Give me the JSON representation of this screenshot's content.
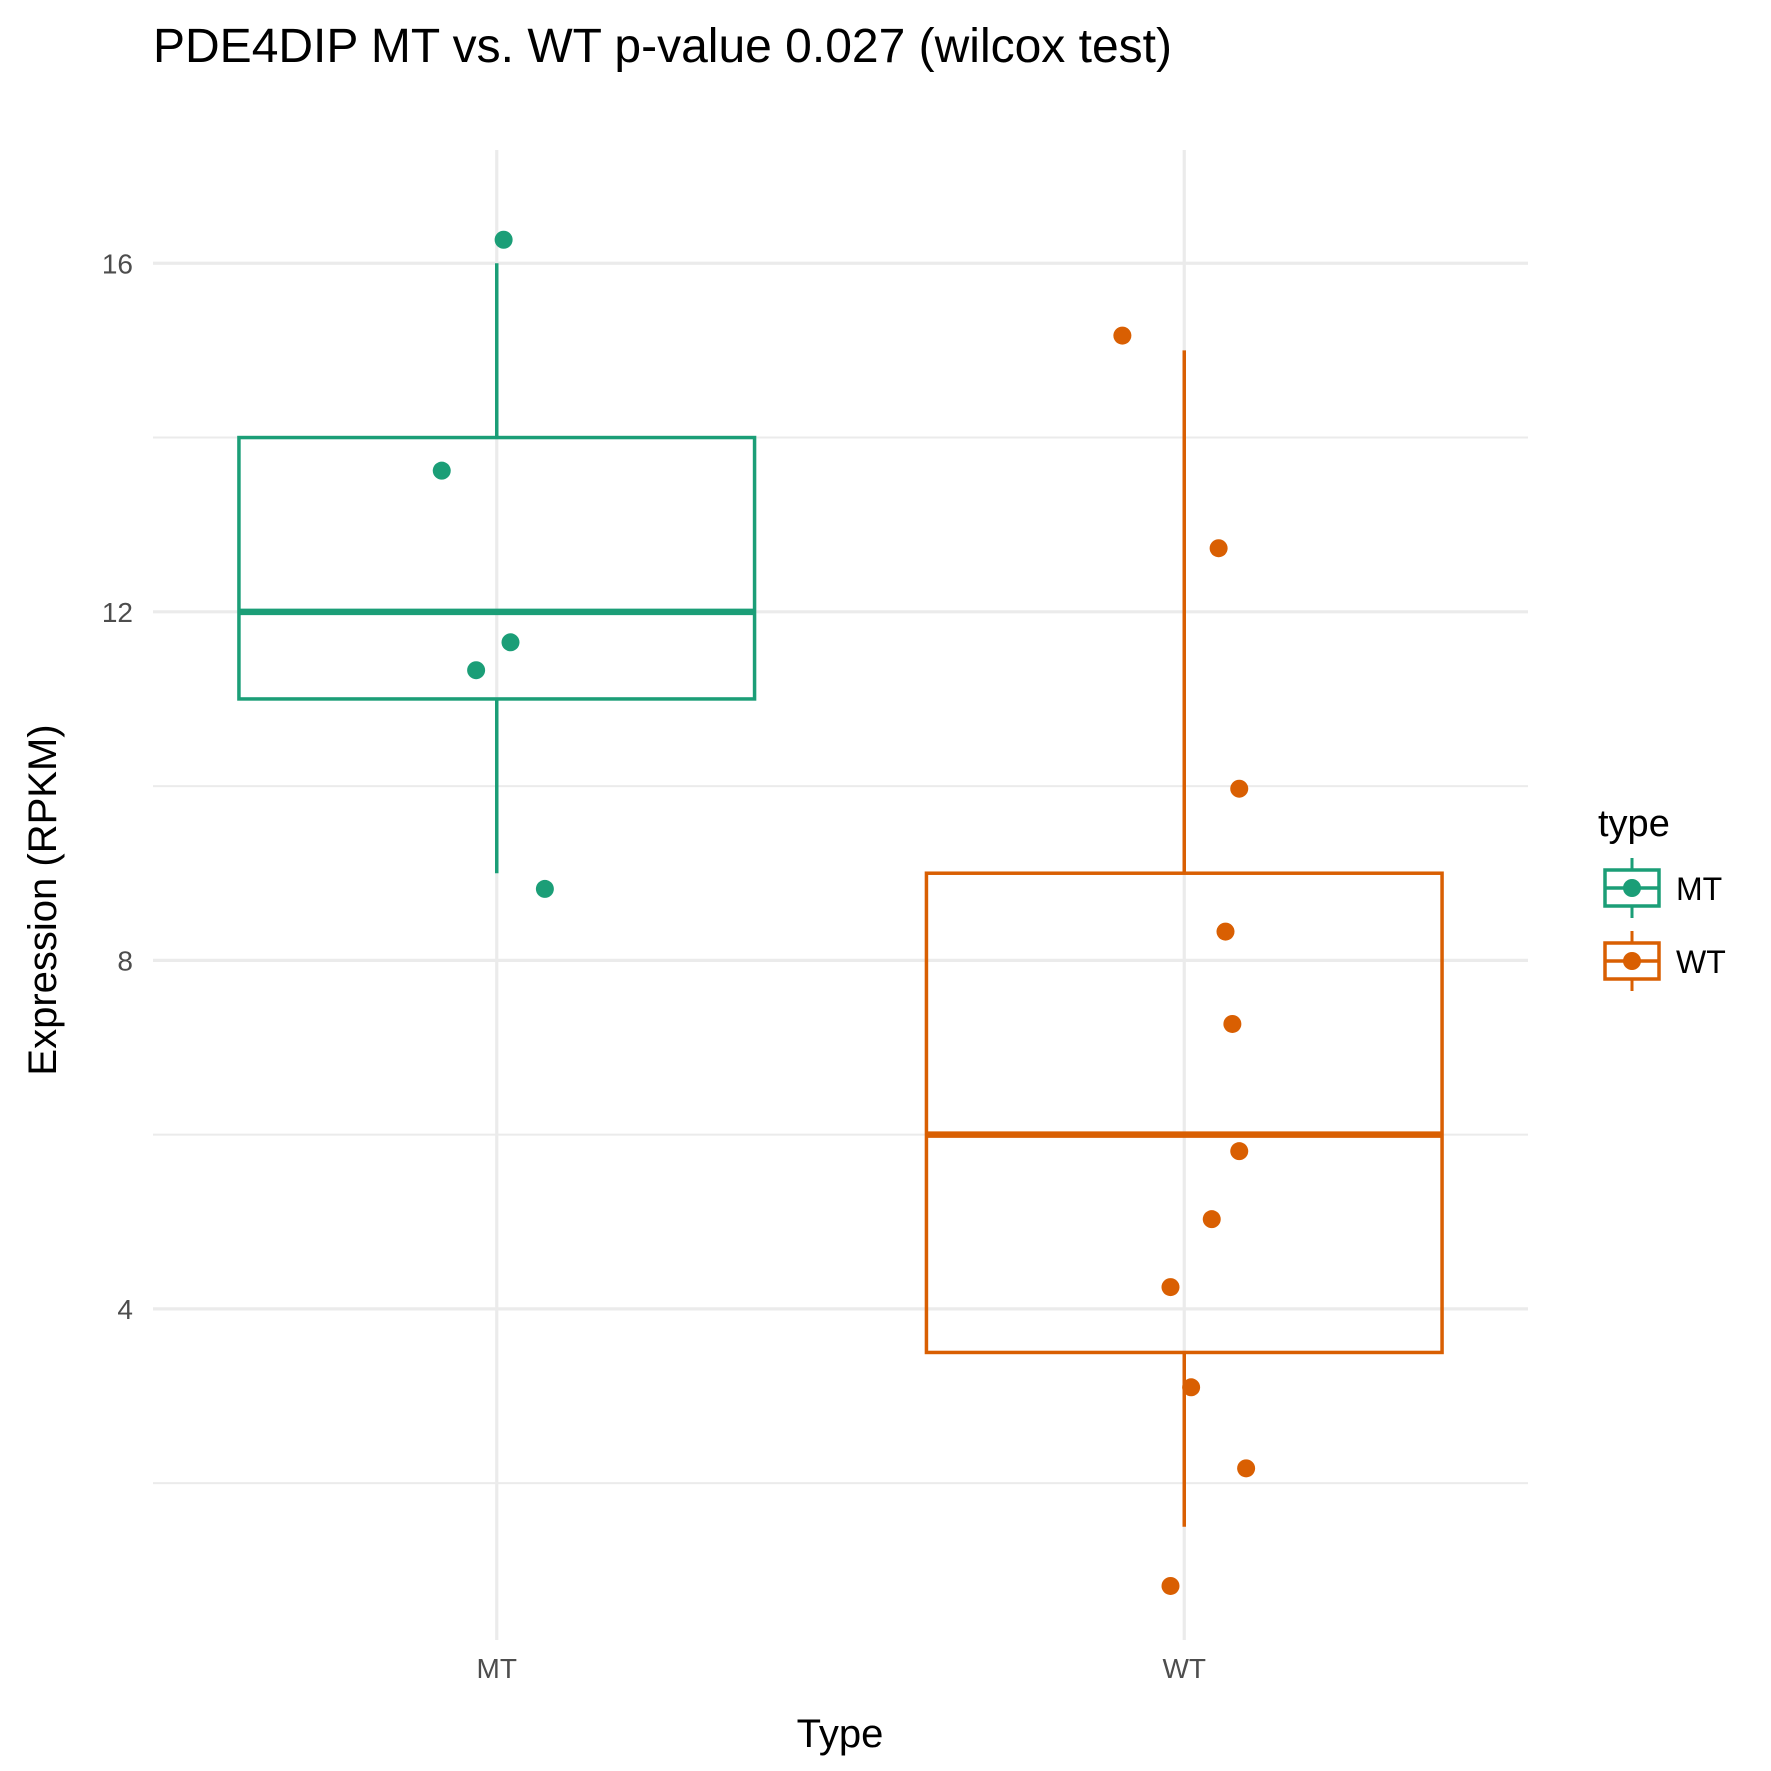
{
  "chart_data": {
    "type": "box",
    "title": "PDE4DIP MT vs. WT p-value 0.027 (wilcox test)",
    "xlabel": "Type",
    "ylabel": "Expression (RPKM)",
    "ylim": [
      0.2,
      17.3
    ],
    "y_ticks": [
      4,
      8,
      12,
      16
    ],
    "y_tick_labels": [
      "4",
      "8",
      "12",
      "16"
    ],
    "categories": [
      "MT",
      "WT"
    ],
    "grid": true,
    "legend": {
      "title": "type",
      "position": "right",
      "entries": [
        "MT",
        "WT"
      ]
    },
    "colors": {
      "MT": "#1b9e77",
      "WT": "#d95f02"
    },
    "series": [
      {
        "name": "MT",
        "box": {
          "whisker_low": 9.0,
          "q1": 11.0,
          "median": 12.0,
          "q3": 14.0,
          "whisker_high": 16.0
        },
        "points": [
          {
            "x_offset": 0.01,
            "y": 16.27
          },
          {
            "x_offset": -0.08,
            "y": 13.62
          },
          {
            "x_offset": 0.02,
            "y": 11.65
          },
          {
            "x_offset": -0.03,
            "y": 11.33
          },
          {
            "x_offset": 0.07,
            "y": 8.82
          }
        ]
      },
      {
        "name": "WT",
        "box": {
          "whisker_low": 1.5,
          "q1": 3.5,
          "median": 6.0,
          "q3": 9.0,
          "whisker_high": 15.0
        },
        "points": [
          {
            "x_offset": -0.09,
            "y": 15.17
          },
          {
            "x_offset": 0.05,
            "y": 12.73
          },
          {
            "x_offset": 0.08,
            "y": 9.97
          },
          {
            "x_offset": 0.06,
            "y": 8.33
          },
          {
            "x_offset": 0.07,
            "y": 7.27
          },
          {
            "x_offset": 0.08,
            "y": 5.81
          },
          {
            "x_offset": 0.04,
            "y": 5.03
          },
          {
            "x_offset": -0.02,
            "y": 4.25
          },
          {
            "x_offset": 0.01,
            "y": 3.1
          },
          {
            "x_offset": 0.09,
            "y": 2.17
          },
          {
            "x_offset": -0.02,
            "y": 0.82
          }
        ]
      }
    ]
  }
}
